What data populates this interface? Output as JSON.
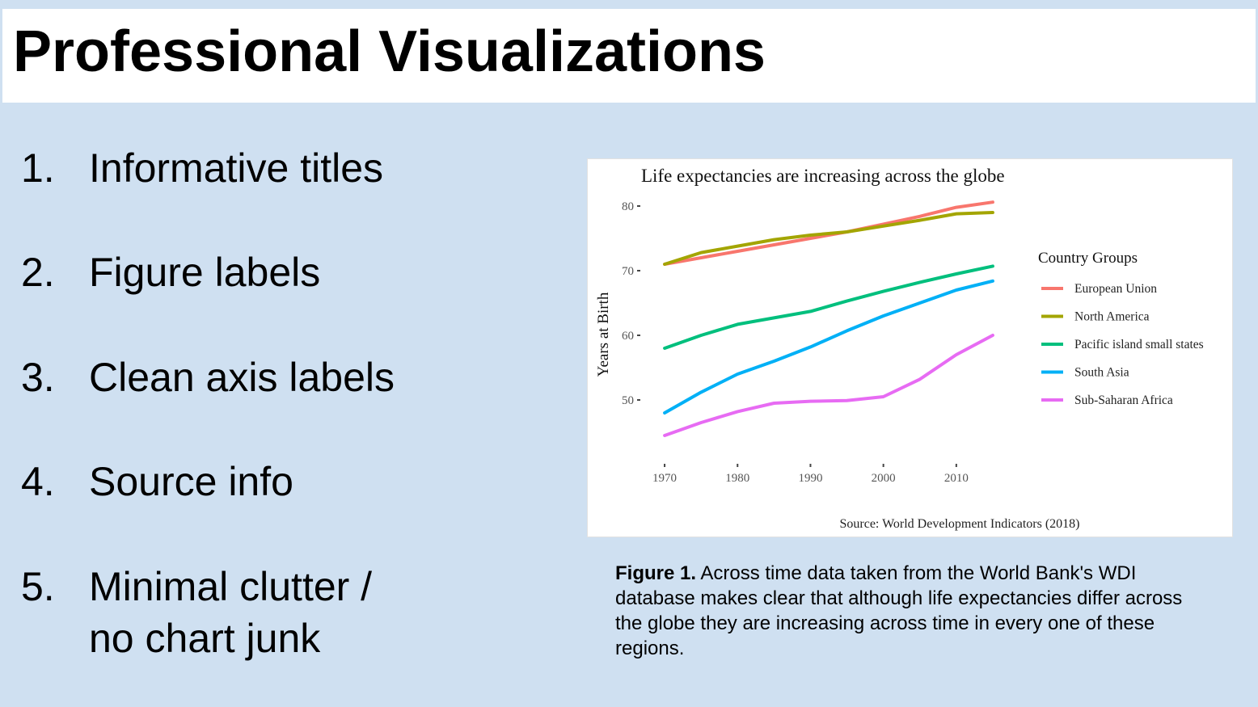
{
  "slide": {
    "title": "Professional Visualizations"
  },
  "list": [
    {
      "num": "1.",
      "lines": [
        "Informative titles"
      ]
    },
    {
      "num": "2.",
      "lines": [
        "Figure labels"
      ]
    },
    {
      "num": "3.",
      "lines": [
        "Clean axis labels"
      ]
    },
    {
      "num": "4.",
      "lines": [
        "Source info"
      ]
    },
    {
      "num": "5.",
      "lines": [
        "Minimal clutter /",
        "no chart junk"
      ]
    }
  ],
  "caption": {
    "label": "Figure 1.",
    "text": " Across time data taken from the World Bank's WDI database makes clear that although life expectancies differ across the globe they are increasing across time in every one of these regions."
  },
  "chart_data": {
    "type": "line",
    "title": "Life expectancies are increasing across the globe",
    "xlabel": "",
    "ylabel": "Years at Birth",
    "source": "Source: World Development Indicators (2018)",
    "legend_title": "Country Groups",
    "legend_position": "right",
    "grid": false,
    "x_ticks": [
      1970,
      1980,
      1990,
      2000,
      2010
    ],
    "y_ticks": [
      50,
      60,
      70,
      80
    ],
    "xlim": [
      1967,
      2018
    ],
    "ylim": [
      42,
      82
    ],
    "x": [
      1970,
      1975,
      1980,
      1985,
      1990,
      1995,
      2000,
      2005,
      2010,
      2015
    ],
    "series": [
      {
        "name": "European Union",
        "color": "#f8766d",
        "values": [
          71.0,
          72.0,
          73.0,
          74.0,
          75.0,
          76.0,
          77.2,
          78.4,
          79.8,
          80.6
        ]
      },
      {
        "name": "North America",
        "color": "#a3a500",
        "values": [
          71.0,
          72.8,
          73.8,
          74.8,
          75.5,
          76.0,
          76.9,
          77.8,
          78.8,
          79.0
        ]
      },
      {
        "name": "Pacific island small states",
        "color": "#00bf7d",
        "values": [
          58.0,
          60.0,
          61.7,
          62.7,
          63.7,
          65.3,
          66.8,
          68.2,
          69.5,
          70.7
        ]
      },
      {
        "name": "South Asia",
        "color": "#00b0f6",
        "values": [
          48.0,
          51.2,
          54.0,
          56.0,
          58.2,
          60.7,
          63.0,
          65.0,
          67.0,
          68.4
        ]
      },
      {
        "name": "Sub-Saharan Africa",
        "color": "#e76bf3",
        "values": [
          44.5,
          46.5,
          48.2,
          49.5,
          49.8,
          49.9,
          50.5,
          53.2,
          57.0,
          60.0
        ]
      }
    ]
  }
}
